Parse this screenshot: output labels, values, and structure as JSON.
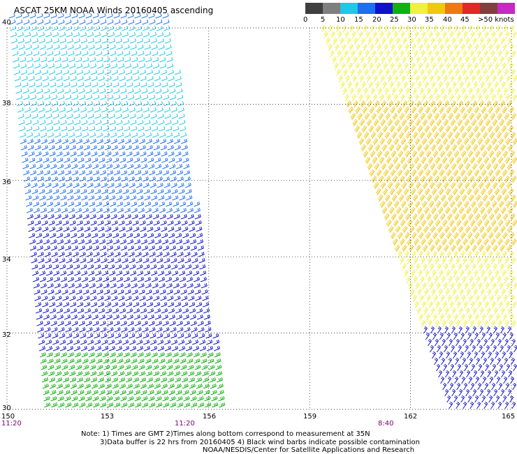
{
  "header": {
    "title": "ASCAT 25KM NOAA Winds 20160405 ascending"
  },
  "legend": {
    "labels": [
      "0",
      "5",
      "10",
      "15",
      "20",
      "25",
      "30",
      "35",
      "40",
      "45",
      ">50 knots"
    ],
    "colors": [
      "#3f3f3f",
      "#7f7f7f",
      "#1ec8e6",
      "#1e6ef0",
      "#1010c8",
      "#10b010",
      "#f0f040",
      "#f0c810",
      "#f07810",
      "#e02828",
      "#804040",
      "#c828c8",
      "#8010c8",
      "#500080"
    ]
  },
  "axes": {
    "x_ticks": [
      "150",
      "153",
      "156",
      "159",
      "162",
      "165"
    ],
    "y_ticks": [
      "40",
      "38",
      "36",
      "34",
      "32",
      "30"
    ]
  },
  "pass_times": [
    "11:20",
    "11:20",
    "8:40"
  ],
  "notes": {
    "line1": "Note: 1) Times are GMT 2)Times along bottom correspond to measurement at 35N",
    "line2": "3)Data buffer is 22 hrs from 20160405 4) Black wind barbs indicate possible contamination",
    "line3": "NOAA/NESDIS/Center for Satellite Applications and Research"
  },
  "chart_data": {
    "type": "scatter",
    "title": "ASCAT 25KM NOAA Winds 20160405 ascending",
    "xlabel": "",
    "ylabel": "",
    "xlim": [
      150,
      165
    ],
    "ylim": [
      30,
      40
    ],
    "x_ticks": [
      150,
      153,
      156,
      159,
      162,
      165
    ],
    "y_ticks": [
      30,
      32,
      34,
      36,
      38,
      40
    ],
    "grid": true,
    "units": "knots",
    "series": [
      {
        "name": "11:20",
        "swath": "west",
        "wind_regions": [
          {
            "lat_range": [
              37,
              40
            ],
            "speed_knots": 8
          },
          {
            "lat_range": [
              35,
              37
            ],
            "speed_knots": 12
          },
          {
            "lat_range": [
              33.5,
              35
            ],
            "speed_knots": 15
          },
          {
            "lat_range": [
              31.5,
              33.5
            ],
            "speed_knots": 18
          },
          {
            "lat_range": [
              30,
              31.5
            ],
            "speed_knots": 22
          }
        ]
      },
      {
        "name": "8:40",
        "swath": "east",
        "wind_regions": [
          {
            "lat_range": [
              38,
              40
            ],
            "speed_knots": 25
          },
          {
            "lat_range": [
              36,
              38
            ],
            "speed_knots": 32
          },
          {
            "lat_range": [
              34,
              36
            ],
            "speed_knots": 30
          },
          {
            "lat_range": [
              32,
              34
            ],
            "speed_knots": 27
          },
          {
            "lat_range": [
              30,
              32
            ],
            "speed_knots": 17
          }
        ]
      }
    ]
  }
}
